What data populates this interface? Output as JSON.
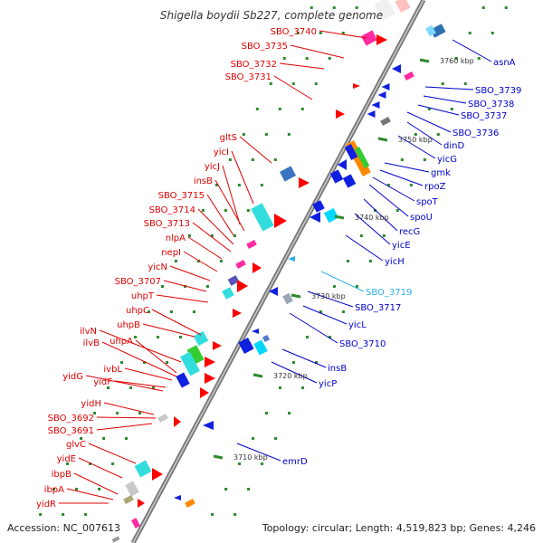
{
  "title": "Shigella boydii Sb227, complete genome",
  "accession": "Accession: NC_007613",
  "topology": "Topology: circular; Length: 4,519,823 bp; Genes: 4,246",
  "colors": {
    "backbone": "#8c8c8c",
    "minus_label": "#e00000",
    "plus_label": "#0000cc",
    "highlight_label": "#2ab0e6",
    "tick": "#2d8a2d"
  },
  "scale_labels": [
    {
      "id": "kbp-3760",
      "text": "3760 kbp"
    },
    {
      "id": "kbp-3750",
      "text": "3750 kbp"
    },
    {
      "id": "kbp-3740",
      "text": "3740 kbp"
    },
    {
      "id": "kbp-3730",
      "text": "3730 kbp"
    },
    {
      "id": "kbp-3720",
      "text": "3720 kbp"
    },
    {
      "id": "kbp-3710",
      "text": "3710 kbp"
    }
  ],
  "left_genes": [
    "SBO_3740",
    "SBO_3735",
    "SBO_3732",
    "SBO_3731",
    "gltS",
    "yicI",
    "yicJ",
    "insB",
    "SBO_3715",
    "SBO_3714",
    "SBO_3713",
    "nlpA",
    "nepI",
    "yicN",
    "SBO_3707",
    "uhpT",
    "uhpC",
    "uhpB",
    "ilvN",
    "uhpA",
    "ilvB",
    "ivbL",
    "yidF",
    "yidG",
    "yidH",
    "SBO_3692",
    "SBO_3691",
    "glvC",
    "yidE",
    "ibpB",
    "ibpA",
    "yidR"
  ],
  "right_genes": [
    "asnA",
    "SBO_3739",
    "SBO_3738",
    "SBO_3737",
    "SBO_3736",
    "dinD",
    "yicG",
    "gmk",
    "rpoZ",
    "spoT",
    "spoU",
    "recG",
    "yicE",
    "yicH",
    "SBO_3719",
    "SBO_3717",
    "yicL",
    "SBO_3710",
    "insB",
    "yicP",
    "emrD"
  ]
}
